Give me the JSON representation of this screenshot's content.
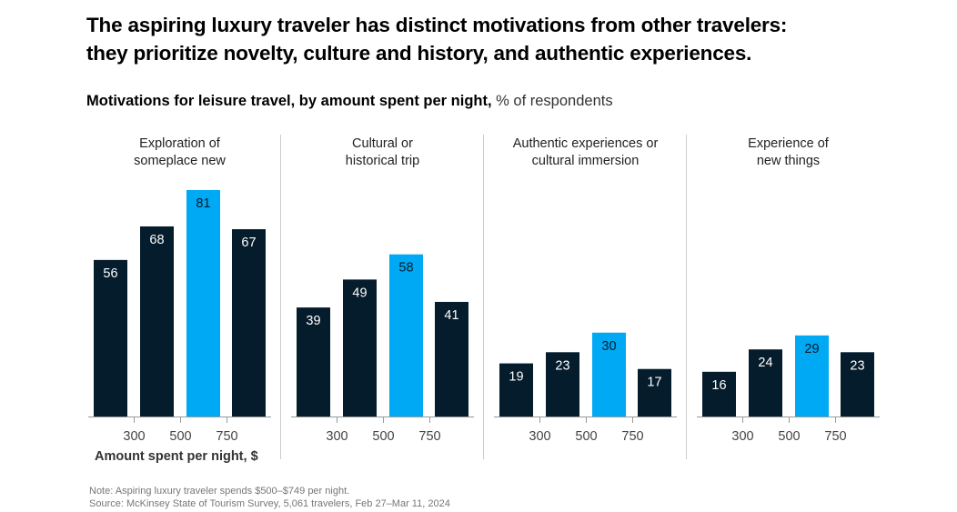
{
  "title_line1": "The aspiring luxury traveler has distinct motivations from other travelers:",
  "title_line2": "they prioritize novelty, culture and history, and authentic experiences.",
  "subtitle_bold": "Motivations for leisure travel, by amount spent per night,",
  "subtitle_unit": " % of respondents",
  "note": "Note: Aspiring luxury traveler spends $500–$749 per night.",
  "source": "Source: McKinsey State of Tourism Survey, 5,061 travelers, Feb 27–Mar 11, 2024",
  "colors": {
    "dark": "#051c2c",
    "highlight": "#00a9f4"
  },
  "chart_data": [
    {
      "type": "bar",
      "title": [
        "Exploration of",
        "someplace new"
      ],
      "values": [
        56,
        68,
        81,
        67
      ],
      "highlight_index": 2,
      "tick_labels": [
        "300",
        "500",
        "750"
      ],
      "xlabel": "Amount spent per night, $",
      "ylim": [
        0,
        81
      ]
    },
    {
      "type": "bar",
      "title": [
        "Cultural or",
        "historical trip"
      ],
      "values": [
        39,
        49,
        58,
        41
      ],
      "highlight_index": 2,
      "tick_labels": [
        "300",
        "500",
        "750"
      ],
      "ylim": [
        0,
        81
      ]
    },
    {
      "type": "bar",
      "title": [
        "Authentic experiences or",
        "cultural immersion"
      ],
      "values": [
        19,
        23,
        30,
        17
      ],
      "highlight_index": 2,
      "tick_labels": [
        "300",
        "500",
        "750"
      ],
      "ylim": [
        0,
        81
      ]
    },
    {
      "type": "bar",
      "title": [
        "Experience of",
        "new things"
      ],
      "values": [
        16,
        24,
        29,
        23
      ],
      "highlight_index": 2,
      "tick_labels": [
        "300",
        "500",
        "750"
      ],
      "ylim": [
        0,
        81
      ]
    }
  ]
}
